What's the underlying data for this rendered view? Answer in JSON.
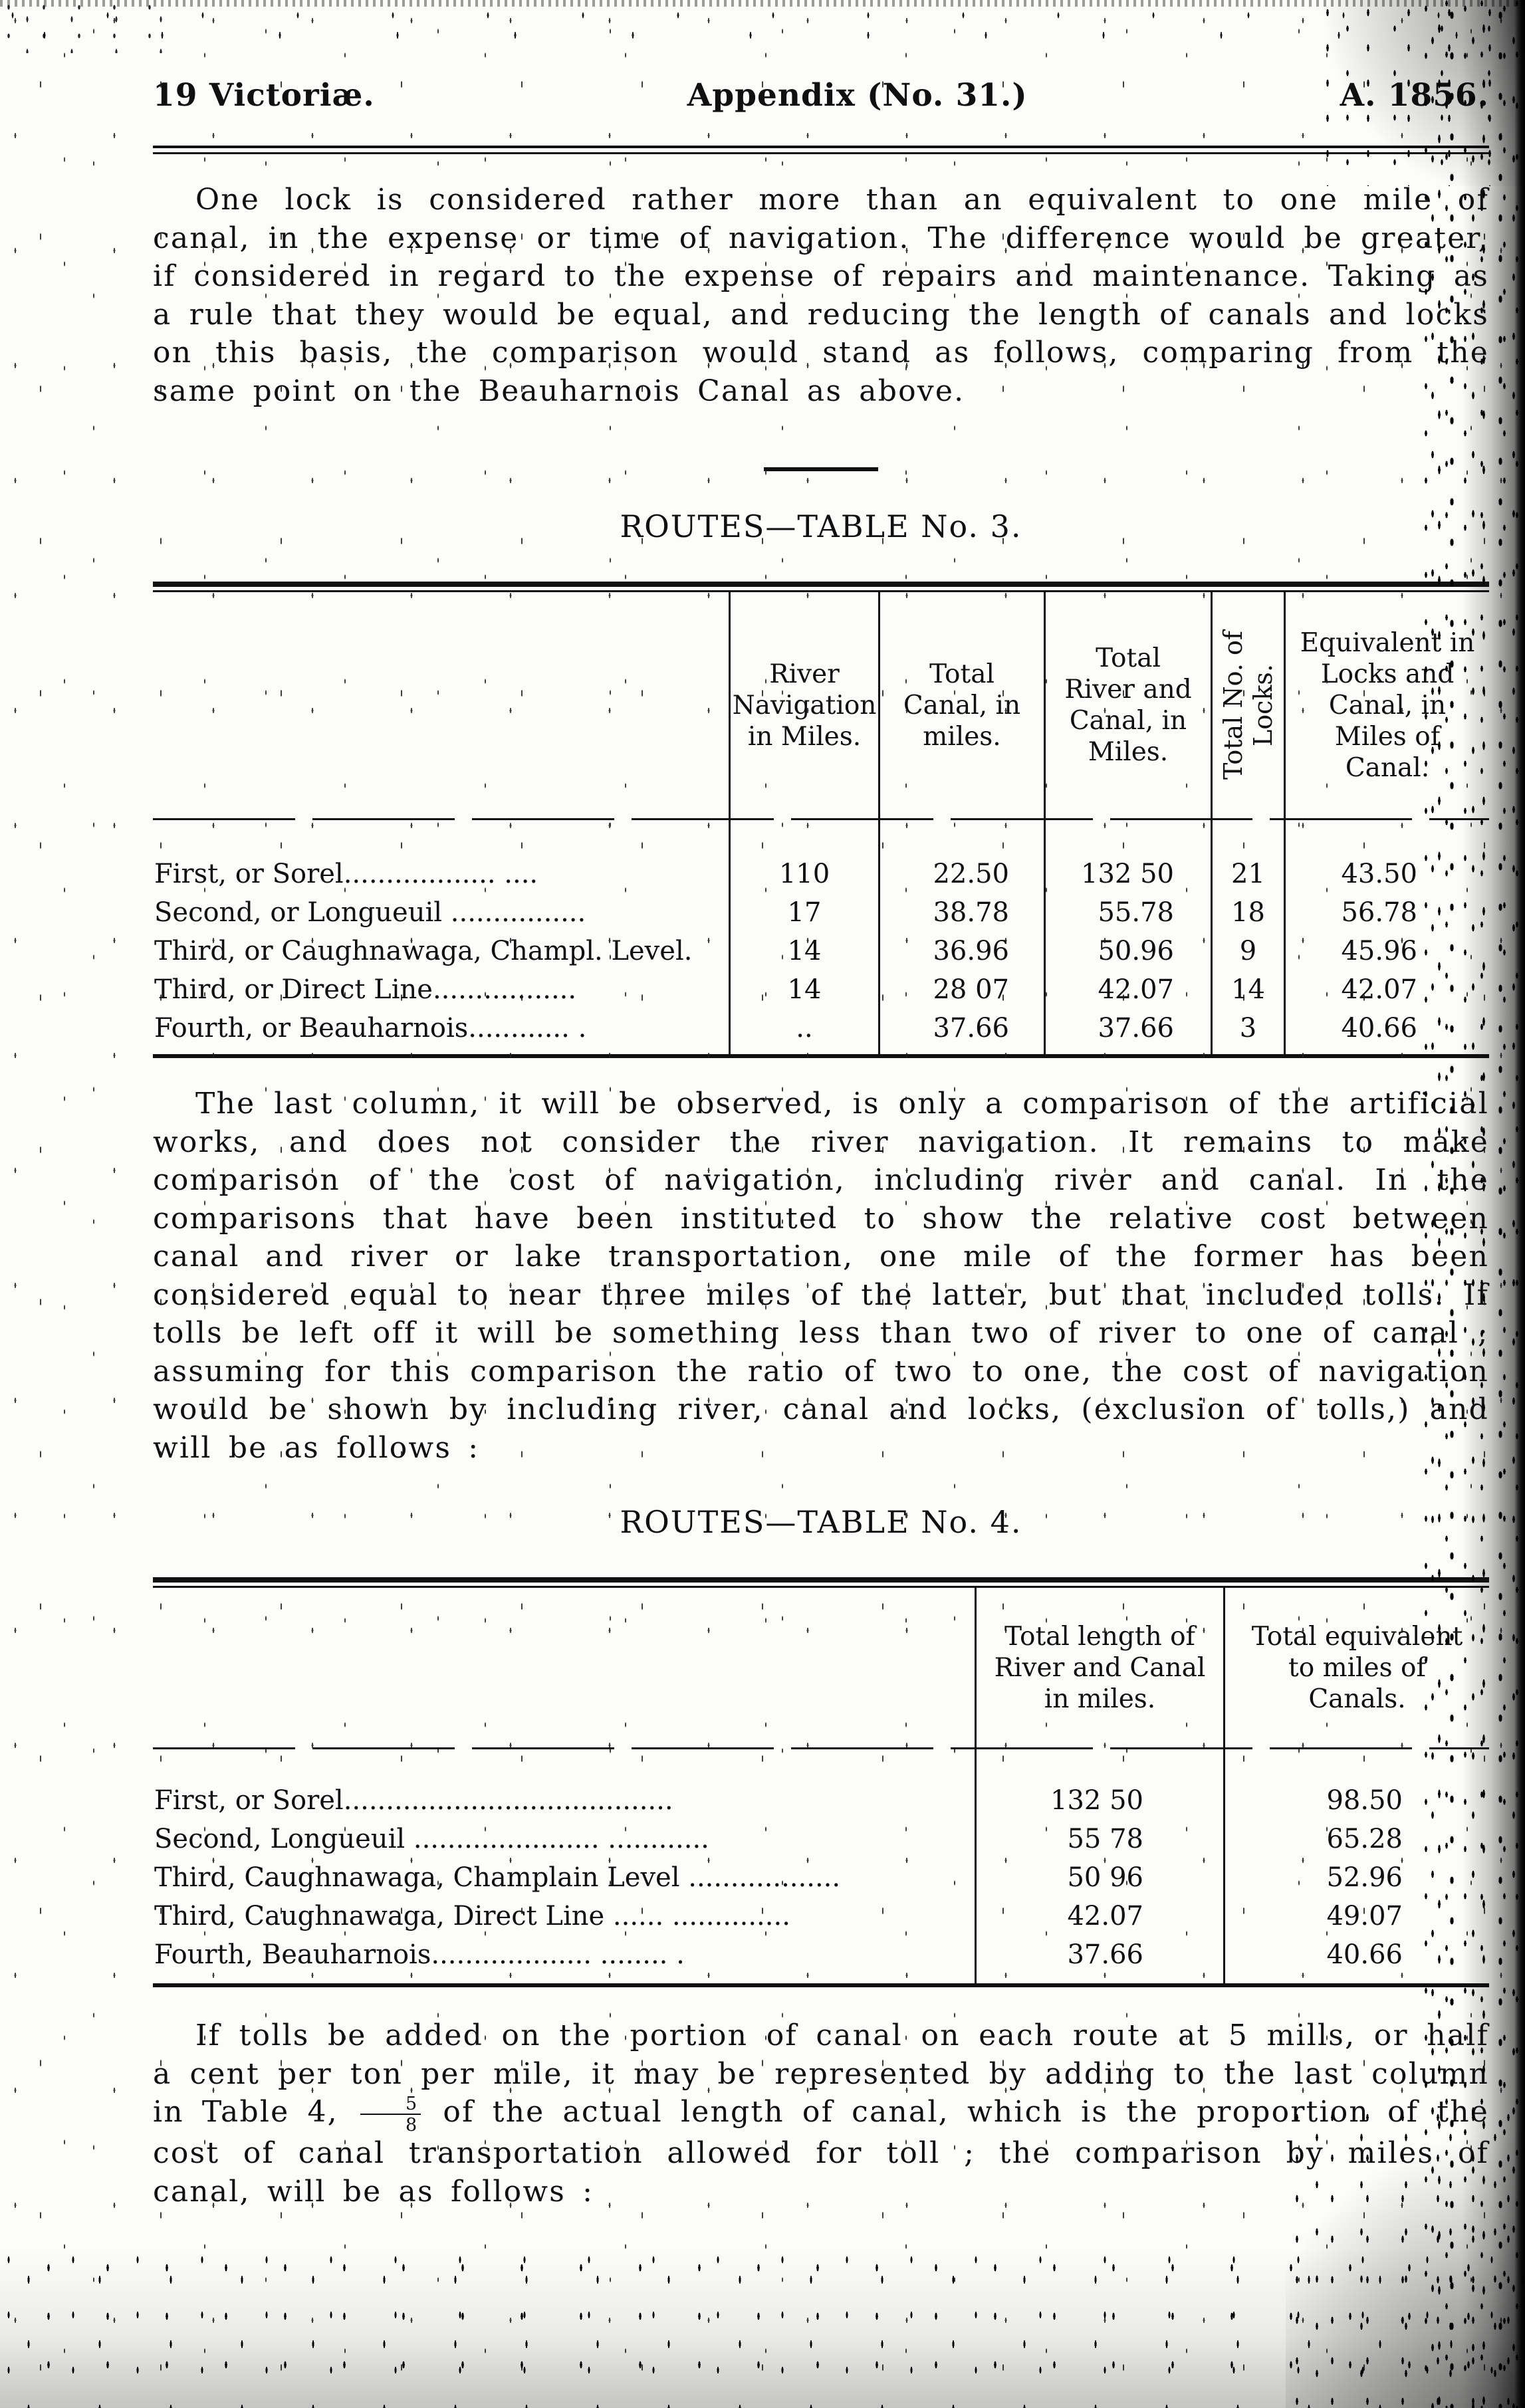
{
  "running_head": {
    "volume": "19 Victoriæ.",
    "center": "Appendix (No. 31.)",
    "year": "A. 1856."
  },
  "paragraph_1": "One lock is considered rather more than an equivalent to one mile of canal, in the expense or time of navigation.  The difference would be greater, if considered in regard to the expense of repairs and maintenance.  Taking as a rule that they would be equal, and reducing the length of canals and locks on this basis, the comparison would stand as follows, comparing from the same point on the Beauharnois Canal as above.",
  "table_3": {
    "title": "ROUTES—TABLE No. 3.",
    "col_headers": [
      "River Navigation in Miles.",
      "Total Canal, in miles.",
      "Total River and Canal, in Miles.",
      "Total No. of Locks.",
      "Equivalent in Locks and Canal, in Miles of Canal."
    ],
    "rows": [
      {
        "label": "First, or Sorel..................  ....",
        "river_nav": "110",
        "total_canal": "22.50",
        "total_river_canal": "132 50",
        "locks": "21",
        "equivalent": "43.50"
      },
      {
        "label": "Second, or Longueuil ................",
        "river_nav": "17",
        "total_canal": "38.78",
        "total_river_canal": "55.78",
        "locks": "18",
        "equivalent": "56.78"
      },
      {
        "label": "Third, or Caughnawaga, Champl. Level.",
        "river_nav": "14",
        "total_canal": "36.96",
        "total_river_canal": "50.96",
        "locks": "9",
        "equivalent": "45.96"
      },
      {
        "label": "Third, or Direct Line.................",
        "river_nav": "14",
        "total_canal": "28 07",
        "total_river_canal": "42.07",
        "locks": "14",
        "equivalent": "42.07"
      },
      {
        "label": "Fourth, or Beauharnois............  .",
        "river_nav": "..",
        "total_canal": "37.66",
        "total_river_canal": "37.66",
        "locks": "3",
        "equivalent": "40.66"
      }
    ]
  },
  "paragraph_2": "The last column, it will be observed, is only a comparison of the artificial works, and does not consider the river navigation.  It remains to make comparison of the cost of navigation, including river and canal.  In the comparisons that have been instituted to show the relative cost between canal and river or lake transportation, one mile of the former has been considered equal to near three miles of the latter, but that included tolls.  If tolls be left off it will be something less than two of river to one of canal ; assuming for this comparison the ratio of two to one, the cost of navigation would be shown by including river, canal and locks, (exclusion of tolls,) and will be as follows :",
  "table_4": {
    "title": "ROUTES—TABLE No. 4.",
    "col_headers": [
      "Total length of River and Canal in miles.",
      "Total equivalent to miles of Canals."
    ],
    "rows": [
      {
        "label": "First, or Sorel.......................................",
        "length": "132 50",
        "equivalent": "98.50"
      },
      {
        "label": "Second, Longueuil ......................  ............",
        "length": "55 78",
        "equivalent": "65.28"
      },
      {
        "label": "Third, Caughnawaga, Champlain Level ..................",
        "length": "50 96",
        "equivalent": "52.96"
      },
      {
        "label": "Third, Caughnawaga, Direct Line ......  ..............",
        "length": "42.07",
        "equivalent": "49.07"
      },
      {
        "label": "Fourth, Beauharnois...................  ........  .",
        "length": "37.66",
        "equivalent": "40.66"
      }
    ]
  },
  "paragraph_3": {
    "before": "If tolls be added on the portion of canal on each route at 5 mills, or half a cent per ton per mile, it may be represented by adding to the last column in Table 4, ",
    "fraction_numerator": "5",
    "fraction_denominator": "8",
    "after": " of the actual length of canal, which is the proportion of the cost of canal transportation allowed for toll ; the comparison by miles of canal, will be as follows :"
  }
}
